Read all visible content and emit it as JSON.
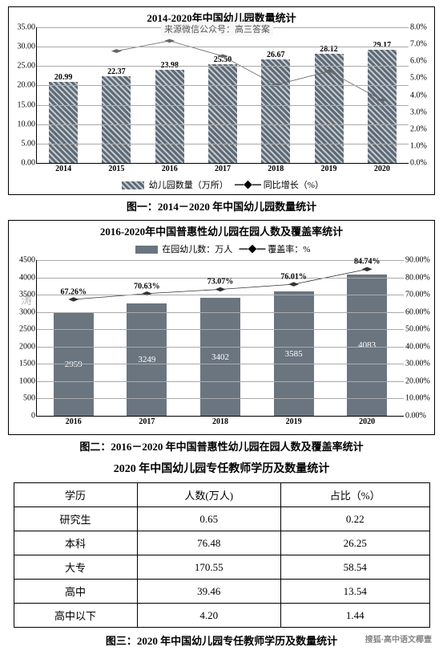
{
  "chart1": {
    "title": "2014-2020年中国幼儿园数量统计",
    "watermark": "来源微信公众号：高三答案",
    "caption": "图一：2014－2020 年中国幼儿园数量统计",
    "y_left": {
      "min": 0,
      "max": 35,
      "step": 5,
      "fmt": "0.00"
    },
    "y_right": {
      "min": 0,
      "max": 8,
      "step": 1,
      "fmt": "0.0%"
    },
    "bar_color": "#5a6a7a",
    "bar_hatch": "#c8c8c8",
    "line_color": "#666",
    "grid_color": "#aaa",
    "years": [
      "2014",
      "2015",
      "2016",
      "2017",
      "2018",
      "2019",
      "2020"
    ],
    "bars": [
      20.99,
      22.37,
      23.98,
      25.5,
      26.67,
      28.12,
      29.17
    ],
    "line_pct": [
      null,
      6.6,
      7.2,
      6.3,
      4.6,
      5.4,
      3.7
    ],
    "legend": {
      "a": "幼儿园数量（万所）",
      "b": "同比增长（%）"
    }
  },
  "chart2": {
    "title": "2016-2020年中国普惠性幼儿园在园人数及覆盖率统计",
    "caption": "图二：2016－2020 年中国普惠性幼儿园在园人数及覆盖率统计",
    "legend": {
      "a": "在园幼儿数：万人",
      "b": "覆盖率：%"
    },
    "y_left": {
      "min": 0,
      "max": 4500,
      "step": 500
    },
    "y_right": {
      "min": 0,
      "max": 90,
      "step": 10,
      "fmt": "0.00%"
    },
    "bar_color": "#6a7580",
    "years": [
      "2016",
      "2017",
      "2018",
      "2019",
      "2020"
    ],
    "bars": [
      2959,
      3249,
      3402,
      3585,
      4083
    ],
    "line_pct": [
      67.26,
      70.63,
      73.07,
      76.01,
      84.74
    ]
  },
  "table": {
    "title": "2020 年中国幼儿园专任教师学历及数量统计",
    "caption": "图三：2020 年中国幼儿园专任教师学历及数量统计",
    "headers": [
      "学历",
      "人数(万人)",
      "占比（%）"
    ],
    "rows": [
      [
        "研究生",
        "0.65",
        "0.22"
      ],
      [
        "本科",
        "76.48",
        "26.25"
      ],
      [
        "大专",
        "170.55",
        "58.54"
      ],
      [
        "高中",
        "39.46",
        "13.54"
      ],
      [
        "高中以下",
        "4.20",
        "1.44"
      ]
    ]
  },
  "footer_wm": "搜狐·高中语文椰壹"
}
